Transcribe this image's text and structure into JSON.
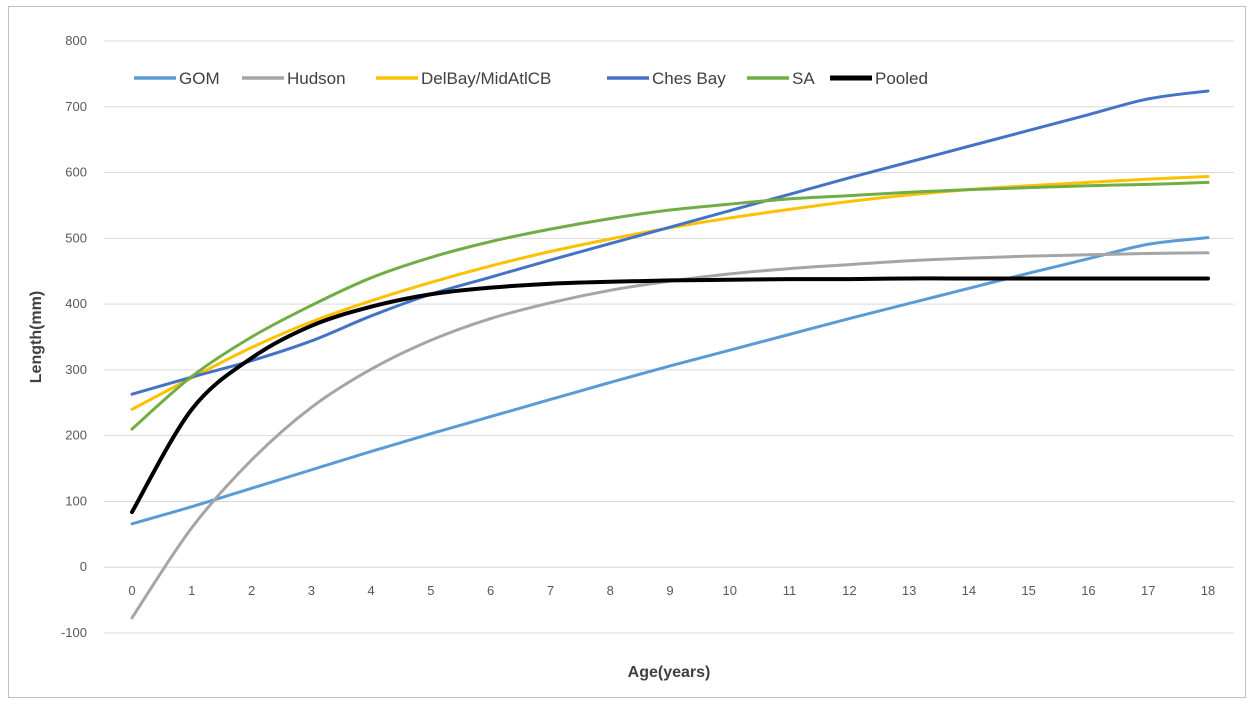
{
  "chart_data": {
    "type": "line",
    "title": "",
    "xlabel": "Age(years)",
    "ylabel": "Length(mm)",
    "x": [
      0,
      1,
      2,
      3,
      4,
      5,
      6,
      7,
      8,
      9,
      10,
      11,
      12,
      13,
      14,
      15,
      16,
      17,
      18
    ],
    "xlim": [
      0,
      18
    ],
    "ylim": [
      -100,
      800
    ],
    "yticks": [
      -100,
      0,
      100,
      200,
      300,
      400,
      500,
      600,
      700,
      800
    ],
    "grid": "horizontal",
    "legend_position": "top-left",
    "series": [
      {
        "name": "GOM",
        "color": "#5b9bd5",
        "values": [
          66,
          92,
          120,
          148,
          176,
          203,
          229,
          255,
          281,
          306,
          330,
          354,
          378,
          401,
          424,
          447,
          469,
          491,
          501
        ]
      },
      {
        "name": "Hudson",
        "color": "#a5a5a5",
        "values": [
          -77,
          60,
          163,
          243,
          301,
          345,
          378,
          402,
          421,
          435,
          446,
          454,
          460,
          466,
          470,
          473,
          475,
          477,
          478
        ]
      },
      {
        "name": "DelBay/MidAtlCB",
        "color": "#ffc000",
        "values": [
          240,
          288,
          334,
          373,
          405,
          433,
          458,
          480,
          499,
          516,
          531,
          544,
          556,
          566,
          574,
          580,
          585,
          590,
          594
        ]
      },
      {
        "name": "Ches Bay",
        "color": "#4472c4",
        "values": [
          263,
          289,
          314,
          344,
          382,
          415,
          441,
          467,
          492,
          517,
          542,
          567,
          592,
          616,
          640,
          664,
          688,
          712,
          724
        ]
      },
      {
        "name": "SA",
        "color": "#70ad47",
        "values": [
          210,
          290,
          350,
          398,
          440,
          471,
          495,
          514,
          530,
          543,
          552,
          560,
          565,
          570,
          574,
          577,
          580,
          582,
          585
        ]
      },
      {
        "name": "Pooled",
        "color": "#000000",
        "values": [
          84,
          240,
          318,
          367,
          396,
          415,
          425,
          431,
          434,
          436,
          437,
          438,
          438,
          439,
          439,
          439,
          439,
          439,
          439
        ]
      }
    ]
  }
}
